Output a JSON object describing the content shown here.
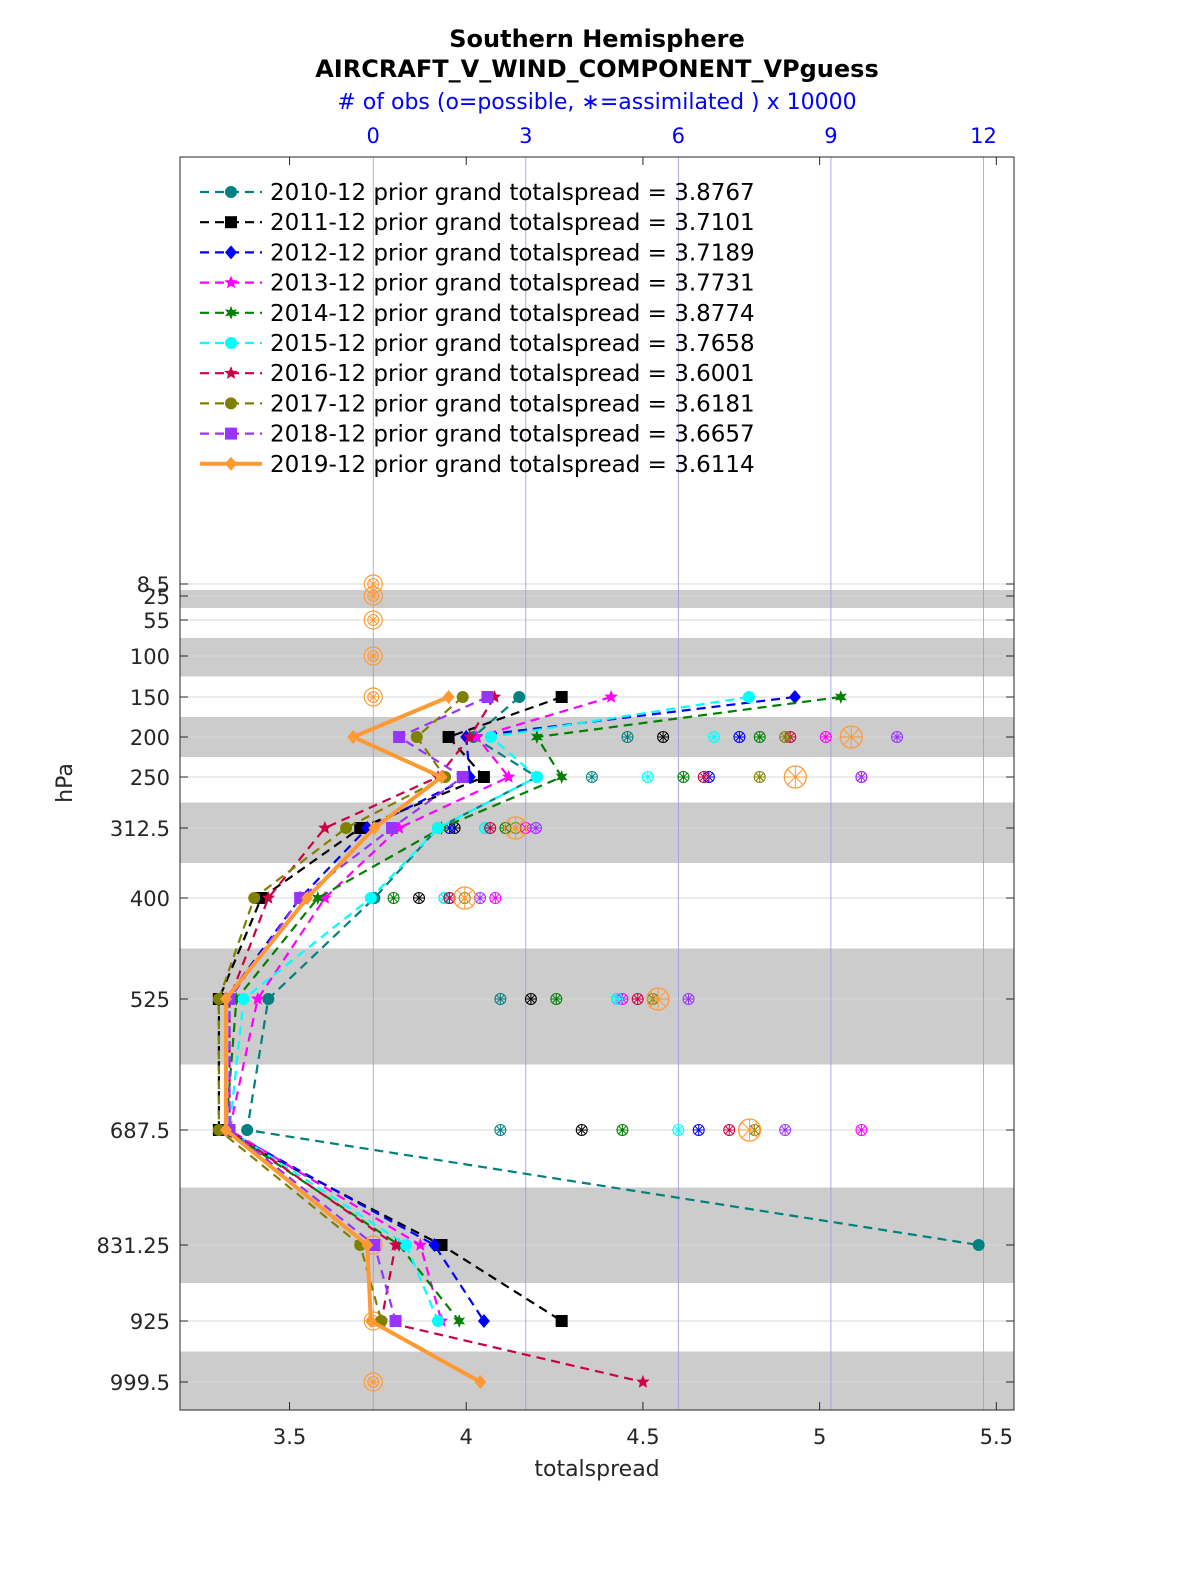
{
  "chart_data": {
    "type": "line",
    "title": "Southern Hemisphere",
    "subtitle": "AIRCRAFT_V_WIND_COMPONENT_VPguess",
    "top_axis_label": "# of obs (o=possible, ∗=assimilated ) x 10000",
    "xlabel": "totalspread",
    "ylabel": "hPa",
    "xlim": [
      3.19,
      5.55
    ],
    "x_ticks": [
      "3.5",
      "4",
      "4.5",
      "5",
      "5.5"
    ],
    "top_axis_lim": [
      -3.8,
      12.6
    ],
    "top_axis_ticks": [
      "0",
      "3",
      "6",
      "9",
      "12"
    ],
    "grid": true,
    "legend_position": "top-left",
    "levels": [
      8.5,
      25,
      55,
      100,
      150,
      200,
      250,
      312.5,
      400,
      525,
      687.5,
      831.25,
      925,
      999.5
    ],
    "level_labels": [
      "8.5",
      "25",
      "55",
      "100",
      "150",
      "200",
      "250",
      "312.5",
      "400",
      "525",
      "687.5",
      "831.25",
      "925",
      "999.5"
    ],
    "shaded_bands_hpa": [
      [
        16.75,
        40
      ],
      [
        77.5,
        125
      ],
      [
        175,
        225
      ],
      [
        281.25,
        356.25
      ],
      [
        462.5,
        606.25
      ],
      [
        759.375,
        878.125
      ],
      [
        962.25,
        1037
      ]
    ],
    "series": [
      {
        "name": "2010-12 prior grand totalspread = 3.8767",
        "color": "#008080",
        "marker": "circle",
        "levels": [
          150,
          200,
          250,
          312.5,
          400,
          525,
          687.5,
          831.25
        ],
        "values": [
          4.15,
          4.02,
          4.2,
          3.92,
          3.74,
          3.44,
          3.38,
          5.45
        ],
        "obs_assimilated": [
          null,
          5.0,
          4.3,
          2.2,
          1.4,
          2.5,
          2.5,
          null
        ]
      },
      {
        "name": "2011-12 prior grand totalspread = 3.7101",
        "color": "#000000",
        "marker": "square",
        "levels": [
          150,
          200,
          250,
          312.5,
          400,
          525,
          687.5,
          831.25,
          925
        ],
        "values": [
          4.27,
          3.95,
          4.05,
          3.7,
          3.42,
          3.3,
          3.3,
          3.93,
          4.27
        ],
        "obs_assimilated": [
          null,
          5.7,
          null,
          1.6,
          0.9,
          3.1,
          4.1,
          null,
          null
        ]
      },
      {
        "name": "2012-12 prior grand totalspread = 3.7189",
        "color": "#0000ff",
        "marker": "diamond",
        "levels": [
          150,
          200,
          250,
          312.5,
          400,
          525,
          687.5,
          831.25,
          925
        ],
        "values": [
          4.93,
          4.0,
          4.01,
          3.72,
          3.53,
          3.32,
          3.32,
          3.91,
          4.05
        ],
        "obs_assimilated": [
          null,
          7.2,
          6.6,
          1.5,
          1.5,
          4.8,
          6.4,
          null,
          null
        ]
      },
      {
        "name": "2013-12 prior grand totalspread = 3.7731",
        "color": "#ff00ff",
        "marker": "star",
        "levels": [
          150,
          200,
          250,
          312.5,
          400,
          525,
          687.5,
          831.25,
          925
        ],
        "values": [
          4.41,
          4.03,
          4.12,
          3.81,
          3.6,
          3.41,
          3.33,
          3.87,
          3.93
        ],
        "obs_assimilated": [
          null,
          8.9,
          9.6,
          3.0,
          2.4,
          4.9,
          9.6,
          null,
          null
        ]
      },
      {
        "name": "2014-12 prior grand totalspread = 3.8774",
        "color": "#008000",
        "marker": "hexagram",
        "levels": [
          150,
          200,
          250,
          312.5,
          400,
          525,
          687.5,
          831.25,
          925
        ],
        "values": [
          5.06,
          4.2,
          4.27,
          3.93,
          3.58,
          3.35,
          3.32,
          3.81,
          3.98
        ],
        "obs_assimilated": [
          null,
          7.6,
          6.1,
          2.6,
          0.4,
          3.6,
          4.9,
          null,
          null
        ]
      },
      {
        "name": "2015-12 prior grand totalspread = 3.7658",
        "color": "#00ffff",
        "marker": "circle",
        "levels": [
          150,
          200,
          250,
          312.5,
          400,
          525,
          687.5,
          831.25,
          925
        ],
        "values": [
          4.8,
          4.07,
          4.2,
          3.92,
          3.73,
          3.37,
          3.33,
          3.83,
          3.92
        ],
        "obs_assimilated": [
          null,
          6.7,
          5.4,
          2.2,
          1.4,
          4.8,
          6.0,
          null,
          null
        ]
      },
      {
        "name": "2016-12 prior grand totalspread = 3.6001",
        "color": "#cc0044",
        "marker": "star",
        "levels": [
          150,
          200,
          250,
          312.5,
          400,
          525,
          687.5,
          831.25,
          925,
          999.5
        ],
        "values": [
          4.08,
          4.01,
          3.92,
          3.6,
          3.44,
          3.33,
          3.33,
          3.8,
          3.76,
          4.5
        ],
        "obs_assimilated": [
          null,
          8.2,
          6.5,
          2.3,
          1.5,
          5.2,
          7.0,
          null,
          null,
          null
        ]
      },
      {
        "name": "2017-12 prior grand totalspread = 3.6181",
        "color": "#808000",
        "marker": "circle",
        "levels": [
          150,
          200,
          250,
          312.5,
          400,
          525,
          687.5,
          831.25,
          925
        ],
        "values": [
          3.99,
          3.86,
          3.94,
          3.66,
          3.4,
          3.3,
          3.3,
          3.7,
          3.76
        ],
        "obs_assimilated": [
          null,
          8.1,
          7.6,
          2.8,
          1.8,
          5.5,
          7.5,
          null,
          null
        ]
      },
      {
        "name": "2018-12 prior grand totalspread = 3.6657",
        "color": "#9933ff",
        "marker": "square",
        "levels": [
          150,
          200,
          250,
          312.5,
          400,
          525,
          687.5,
          831.25,
          925
        ],
        "values": [
          4.06,
          3.81,
          3.99,
          3.79,
          3.53,
          3.33,
          3.33,
          3.74,
          3.8
        ],
        "obs_assimilated": [
          null,
          10.3,
          9.6,
          3.2,
          2.1,
          6.2,
          8.1,
          null,
          null
        ]
      },
      {
        "name": "2019-12 prior grand totalspread = 3.6114",
        "color": "#ff9933",
        "marker": "diamond",
        "bold": true,
        "levels": [
          150,
          200,
          250,
          312.5,
          400,
          525,
          687.5,
          831.25,
          925,
          999.5
        ],
        "values": [
          3.95,
          3.68,
          3.93,
          3.74,
          3.55,
          3.32,
          3.32,
          3.72,
          3.73,
          4.04
        ],
        "obs_assimilated": [
          null,
          9.4,
          8.3,
          2.8,
          1.8,
          5.6,
          7.4,
          null,
          null,
          null
        ]
      }
    ],
    "obs_zero_marker_levels": [
      8.5,
      25,
      55,
      100,
      150,
      831.25,
      925,
      999.5
    ]
  }
}
